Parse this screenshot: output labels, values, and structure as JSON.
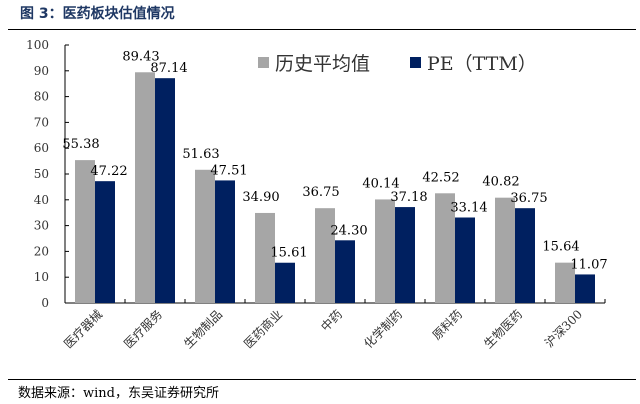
{
  "title": "图 3：医药板块估值情况",
  "source": "数据来源：wind，东吴证券研究所",
  "chart_data": {
    "type": "bar",
    "title": "",
    "categories": [
      "医疗器械",
      "医疗服务",
      "生物制品",
      "医药商业",
      "中药",
      "化学制药",
      "原料药",
      "生物医药",
      "沪深300"
    ],
    "series": [
      {
        "name": "历史平均值",
        "color": "#a6a6a6",
        "values": [
          55.38,
          89.43,
          51.63,
          34.9,
          36.75,
          40.14,
          42.52,
          40.82,
          15.64
        ]
      },
      {
        "name": "PE（TTM）",
        "color": "#002060",
        "values": [
          47.22,
          87.14,
          47.51,
          15.61,
          24.3,
          37.18,
          33.14,
          36.75,
          11.07
        ]
      }
    ],
    "ylim": [
      0,
      100
    ],
    "yticks": [
      0,
      10,
      20,
      30,
      40,
      50,
      60,
      70,
      80,
      90,
      100
    ],
    "legend": "top-right",
    "grid": false,
    "xlabel": "",
    "ylabel": ""
  }
}
